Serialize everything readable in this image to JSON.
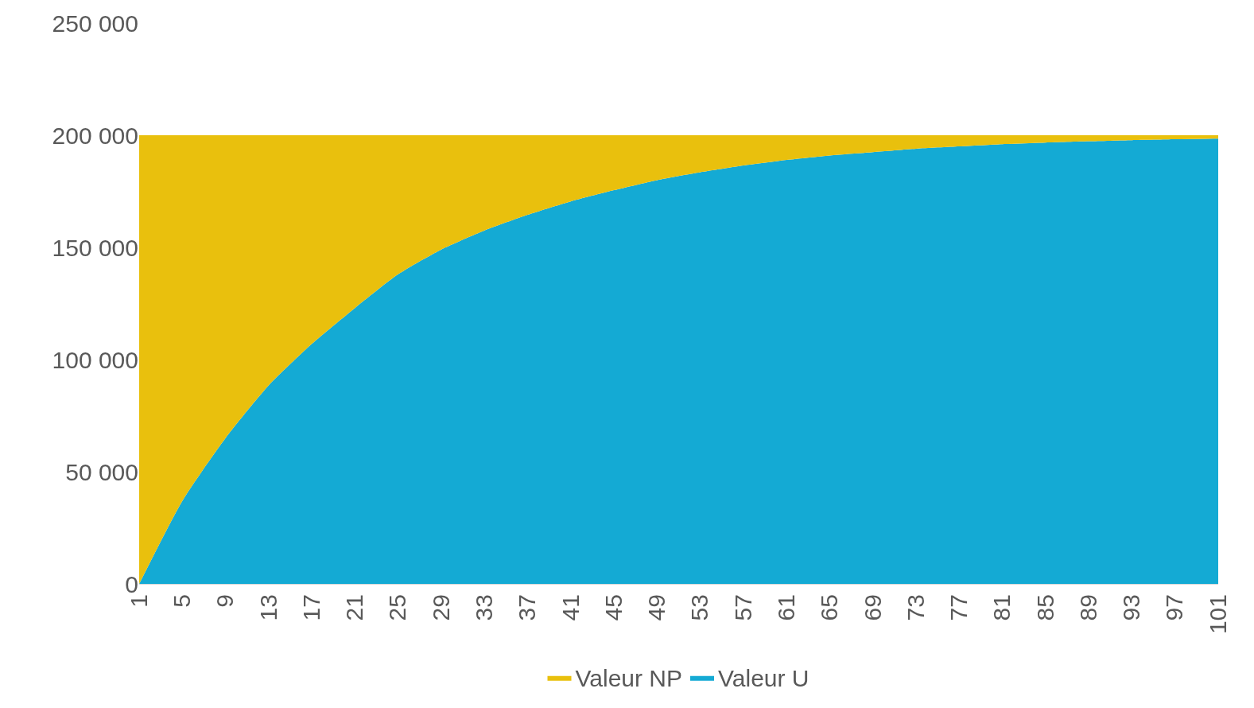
{
  "chart_data": {
    "type": "area",
    "stacked": true,
    "x": [
      1,
      5,
      9,
      13,
      17,
      21,
      25,
      29,
      33,
      37,
      41,
      45,
      49,
      53,
      57,
      61,
      65,
      69,
      73,
      77,
      81,
      85,
      89,
      93,
      97,
      101
    ],
    "series": [
      {
        "name": "Valeur U",
        "color": "#14aad4",
        "values": [
          0,
          37000,
          65000,
          88500,
          107000,
          123000,
          138000,
          149000,
          157500,
          164500,
          170500,
          175500,
          180000,
          183500,
          186500,
          189000,
          191000,
          192500,
          194000,
          195000,
          196000,
          196700,
          197300,
          197800,
          198200,
          198500
        ]
      },
      {
        "name": "Valeur NP",
        "color": "#e9c00d",
        "values": [
          200000,
          163000,
          135000,
          111500,
          93000,
          77000,
          62000,
          51000,
          42500,
          35500,
          29500,
          24500,
          20000,
          16500,
          13500,
          11000,
          9000,
          7500,
          6000,
          5000,
          4000,
          3300,
          2700,
          2200,
          1800,
          1500
        ]
      }
    ],
    "xlim": [
      1,
      101
    ],
    "xticks": [
      1,
      5,
      9,
      13,
      17,
      21,
      25,
      29,
      33,
      37,
      41,
      45,
      49,
      53,
      57,
      61,
      65,
      69,
      73,
      77,
      81,
      85,
      89,
      93,
      97,
      101
    ],
    "ylim": [
      0,
      250000
    ],
    "yticks": [
      0,
      {
        "value": 50000,
        "label": "50 000"
      },
      {
        "value": 100000,
        "label": "100 000"
      },
      {
        "value": 150000,
        "label": "150 000"
      },
      {
        "value": 200000,
        "label": "200 000"
      },
      {
        "value": 250000,
        "label": "250 000"
      }
    ],
    "grid": "y",
    "legend": "bottom"
  }
}
